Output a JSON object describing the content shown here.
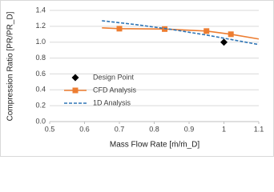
{
  "chart_data": {
    "type": "line",
    "x_label": "Mass Flow Rate [ṁ/ṁ_D]",
    "y_label": "Compression Ratio [PR/PR_D]",
    "xlim": [
      0.5,
      1.1
    ],
    "xticks": [
      0.5,
      0.6,
      0.7,
      0.8,
      0.9,
      1,
      1.1
    ],
    "ylim": [
      0,
      1.4
    ],
    "yticks": [
      {
        "value": 0,
        "label": "0.0"
      },
      0.2,
      0.4,
      0.6,
      0.8,
      {
        "value": 1,
        "label": "1.0"
      },
      1.2,
      1.4
    ],
    "grid": true,
    "legend": "lower-left",
    "series": [
      {
        "name": "Design Point",
        "type": "scatter",
        "color": "#000000",
        "marker": "diamond",
        "x": [
          1.0
        ],
        "values": [
          1.0
        ]
      },
      {
        "name": "CFD Analysis",
        "type": "line",
        "color": "#ed7d31",
        "marker": "square",
        "markers": [
          1,
          2,
          3,
          4
        ],
        "x": [
          0.65,
          0.7,
          0.83,
          0.95,
          1.02,
          1.1
        ],
        "values": [
          1.18,
          1.17,
          1.165,
          1.14,
          1.1,
          1.04
        ]
      },
      {
        "name": "1D Analysis",
        "type": "line",
        "color": "#2e75b6",
        "dashed": true,
        "x": [
          0.65,
          0.75,
          0.85,
          0.95,
          1.05,
          1.1
        ],
        "values": [
          1.27,
          1.22,
          1.16,
          1.09,
          1.01,
          0.97
        ]
      }
    ]
  }
}
